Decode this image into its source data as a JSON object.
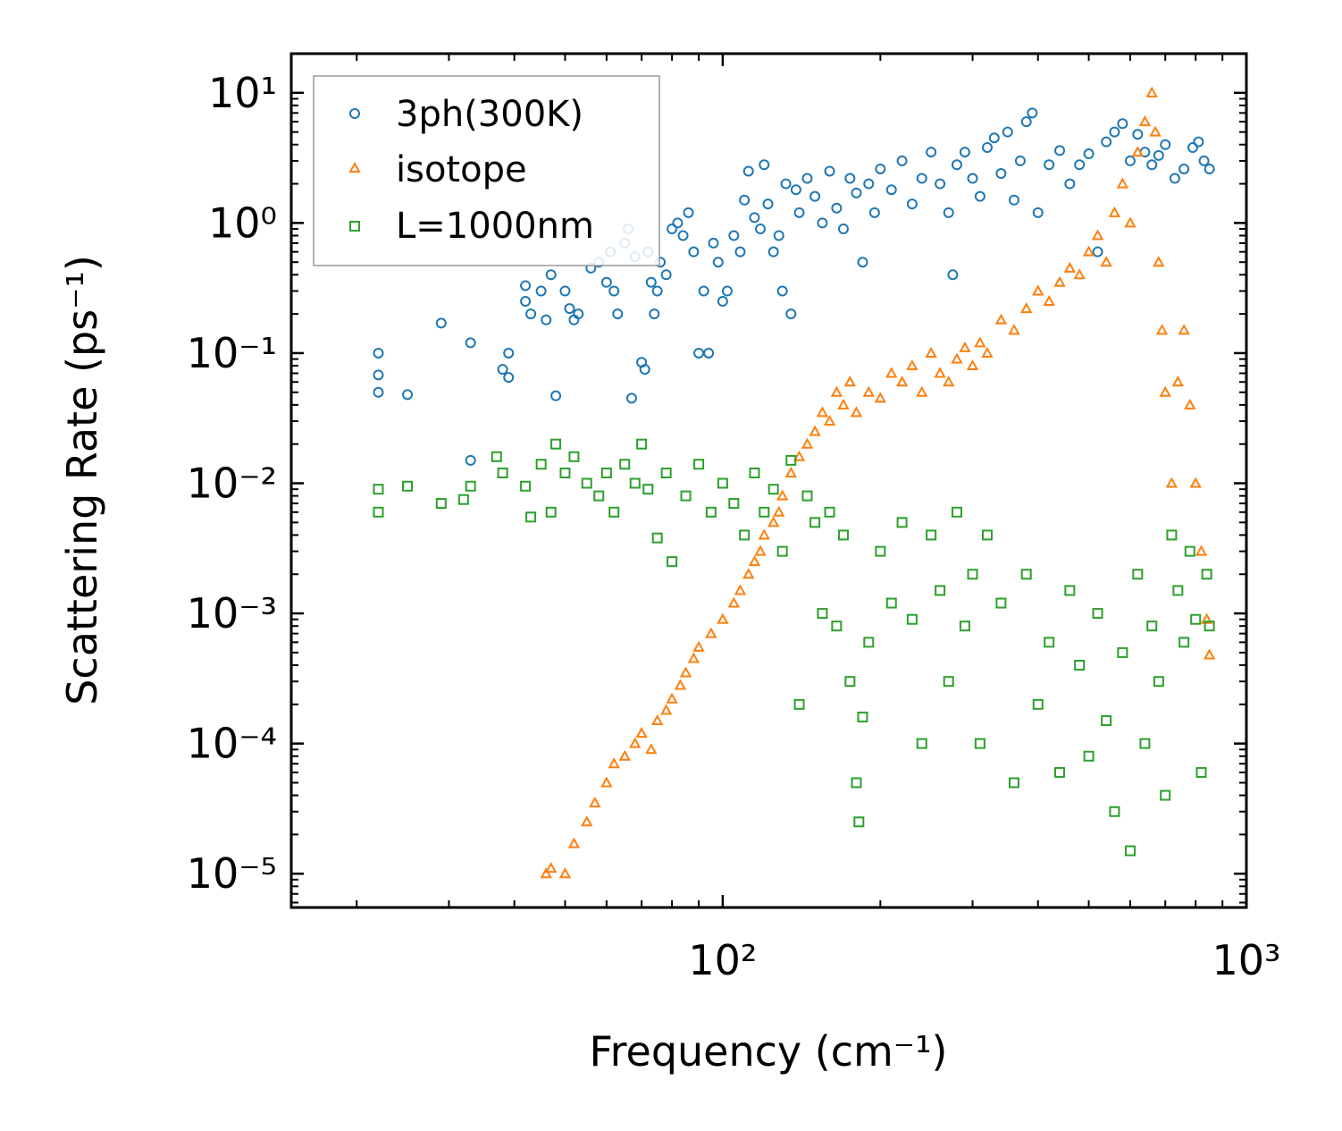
{
  "chart_data": {
    "type": "scatter",
    "title": "",
    "xlabel": "Frequency (cm⁻¹)",
    "ylabel": "Scattering Rate (ps⁻¹)",
    "xscale": "log",
    "yscale": "log",
    "xlim": [
      15,
      1000
    ],
    "ylim": [
      5.5e-06,
      20
    ],
    "x_ticks": [
      {
        "value": 100,
        "label": "10²"
      },
      {
        "value": 1000,
        "label": "10³"
      }
    ],
    "y_ticks": [
      {
        "value": 10,
        "label": "10¹"
      },
      {
        "value": 1,
        "label": "10⁰"
      },
      {
        "value": 0.1,
        "label": "10⁻¹"
      },
      {
        "value": 0.01,
        "label": "10⁻²"
      },
      {
        "value": 0.001,
        "label": "10⁻³"
      },
      {
        "value": 0.0001,
        "label": "10⁻⁴"
      },
      {
        "value": 1e-05,
        "label": "10⁻⁵"
      }
    ],
    "legend_position": "top-left",
    "series": [
      {
        "name": "3ph(300K)",
        "marker": "circle",
        "color": "#1f77b4",
        "points": [
          [
            22,
            0.1
          ],
          [
            22,
            0.068
          ],
          [
            22,
            0.05
          ],
          [
            25,
            0.048
          ],
          [
            29,
            0.17
          ],
          [
            33,
            0.12
          ],
          [
            33,
            0.015
          ],
          [
            38,
            0.075
          ],
          [
            39,
            0.065
          ],
          [
            39,
            0.1
          ],
          [
            42,
            0.33
          ],
          [
            42,
            0.25
          ],
          [
            43,
            0.2
          ],
          [
            45,
            0.3
          ],
          [
            46,
            0.18
          ],
          [
            47,
            0.4
          ],
          [
            48,
            0.047
          ],
          [
            50,
            0.3
          ],
          [
            51,
            0.22
          ],
          [
            52,
            0.18
          ],
          [
            53,
            0.2
          ],
          [
            56,
            0.45
          ],
          [
            58,
            0.5
          ],
          [
            60,
            0.35
          ],
          [
            61,
            0.6
          ],
          [
            62,
            0.3
          ],
          [
            63,
            0.2
          ],
          [
            65,
            0.7
          ],
          [
            66,
            0.9
          ],
          [
            67,
            0.045
          ],
          [
            68,
            0.55
          ],
          [
            70,
            0.085
          ],
          [
            71,
            0.075
          ],
          [
            72,
            0.6
          ],
          [
            73,
            0.35
          ],
          [
            74,
            0.2
          ],
          [
            75,
            0.3
          ],
          [
            76,
            0.5
          ],
          [
            78,
            0.4
          ],
          [
            80,
            0.9
          ],
          [
            82,
            1.0
          ],
          [
            84,
            0.8
          ],
          [
            86,
            1.2
          ],
          [
            88,
            0.6
          ],
          [
            90,
            0.1
          ],
          [
            92,
            0.3
          ],
          [
            94,
            0.1
          ],
          [
            96,
            0.7
          ],
          [
            98,
            0.5
          ],
          [
            100,
            0.25
          ],
          [
            102,
            0.3
          ],
          [
            105,
            0.8
          ],
          [
            108,
            0.6
          ],
          [
            110,
            1.5
          ],
          [
            112,
            2.5
          ],
          [
            115,
            1.1
          ],
          [
            118,
            0.9
          ],
          [
            120,
            2.8
          ],
          [
            122,
            1.4
          ],
          [
            125,
            0.6
          ],
          [
            128,
            0.8
          ],
          [
            130,
            0.3
          ],
          [
            132,
            2.0
          ],
          [
            135,
            0.2
          ],
          [
            138,
            1.8
          ],
          [
            140,
            1.2
          ],
          [
            145,
            2.2
          ],
          [
            150,
            1.6
          ],
          [
            155,
            1.0
          ],
          [
            160,
            2.5
          ],
          [
            165,
            1.3
          ],
          [
            170,
            0.9
          ],
          [
            175,
            2.2
          ],
          [
            180,
            1.7
          ],
          [
            185,
            0.5
          ],
          [
            190,
            2.0
          ],
          [
            195,
            1.2
          ],
          [
            200,
            2.6
          ],
          [
            210,
            1.8
          ],
          [
            220,
            3.0
          ],
          [
            230,
            1.4
          ],
          [
            240,
            2.2
          ],
          [
            250,
            3.5
          ],
          [
            260,
            2.0
          ],
          [
            270,
            1.2
          ],
          [
            275,
            0.4
          ],
          [
            280,
            2.8
          ],
          [
            290,
            3.5
          ],
          [
            300,
            2.2
          ],
          [
            310,
            1.6
          ],
          [
            320,
            3.8
          ],
          [
            330,
            4.5
          ],
          [
            340,
            2.4
          ],
          [
            350,
            5.0
          ],
          [
            360,
            1.5
          ],
          [
            370,
            3.0
          ],
          [
            380,
            6.0
          ],
          [
            390,
            7.0
          ],
          [
            400,
            1.2
          ],
          [
            420,
            2.8
          ],
          [
            440,
            3.6
          ],
          [
            460,
            2.0
          ],
          [
            480,
            2.8
          ],
          [
            500,
            3.4
          ],
          [
            520,
            0.6
          ],
          [
            540,
            4.2
          ],
          [
            560,
            5.0
          ],
          [
            580,
            5.8
          ],
          [
            600,
            3.0
          ],
          [
            620,
            4.8
          ],
          [
            640,
            3.5
          ],
          [
            660,
            2.8
          ],
          [
            680,
            3.3
          ],
          [
            700,
            4.0
          ],
          [
            730,
            2.2
          ],
          [
            760,
            2.6
          ],
          [
            790,
            3.8
          ],
          [
            810,
            4.2
          ],
          [
            830,
            3.0
          ],
          [
            850,
            2.6
          ]
        ]
      },
      {
        "name": "isotope",
        "marker": "triangle",
        "color": "#ff7f0e",
        "points": [
          [
            46,
            1e-05
          ],
          [
            47,
            1.1e-05
          ],
          [
            50,
            1e-05
          ],
          [
            52,
            1.7e-05
          ],
          [
            55,
            2.5e-05
          ],
          [
            57,
            3.5e-05
          ],
          [
            60,
            5e-05
          ],
          [
            62,
            7e-05
          ],
          [
            65,
            8e-05
          ],
          [
            68,
            0.0001
          ],
          [
            70,
            0.00012
          ],
          [
            73,
            9e-05
          ],
          [
            75,
            0.00015
          ],
          [
            78,
            0.00018
          ],
          [
            80,
            0.00022
          ],
          [
            83,
            0.00028
          ],
          [
            85,
            0.00035
          ],
          [
            88,
            0.00045
          ],
          [
            90,
            0.00055
          ],
          [
            95,
            0.0007
          ],
          [
            100,
            0.0009
          ],
          [
            105,
            0.0012
          ],
          [
            108,
            0.0015
          ],
          [
            112,
            0.002
          ],
          [
            115,
            0.0025
          ],
          [
            118,
            0.003
          ],
          [
            120,
            0.004
          ],
          [
            125,
            0.005
          ],
          [
            128,
            0.006
          ],
          [
            130,
            0.008
          ],
          [
            135,
            0.012
          ],
          [
            140,
            0.016
          ],
          [
            145,
            0.02
          ],
          [
            150,
            0.025
          ],
          [
            155,
            0.035
          ],
          [
            160,
            0.03
          ],
          [
            165,
            0.05
          ],
          [
            170,
            0.04
          ],
          [
            175,
            0.06
          ],
          [
            180,
            0.035
          ],
          [
            190,
            0.05
          ],
          [
            200,
            0.045
          ],
          [
            210,
            0.07
          ],
          [
            220,
            0.06
          ],
          [
            230,
            0.08
          ],
          [
            240,
            0.05
          ],
          [
            250,
            0.1
          ],
          [
            260,
            0.07
          ],
          [
            270,
            0.06
          ],
          [
            280,
            0.09
          ],
          [
            290,
            0.11
          ],
          [
            300,
            0.08
          ],
          [
            310,
            0.12
          ],
          [
            320,
            0.1
          ],
          [
            340,
            0.18
          ],
          [
            360,
            0.15
          ],
          [
            380,
            0.22
          ],
          [
            400,
            0.3
          ],
          [
            420,
            0.25
          ],
          [
            440,
            0.35
          ],
          [
            460,
            0.45
          ],
          [
            480,
            0.4
          ],
          [
            500,
            0.6
          ],
          [
            520,
            0.8
          ],
          [
            540,
            0.5
          ],
          [
            560,
            1.2
          ],
          [
            580,
            2.0
          ],
          [
            600,
            1.0
          ],
          [
            620,
            3.5
          ],
          [
            640,
            6.0
          ],
          [
            660,
            10.0
          ],
          [
            670,
            5.0
          ],
          [
            680,
            0.5
          ],
          [
            690,
            0.15
          ],
          [
            700,
            0.05
          ],
          [
            720,
            0.01
          ],
          [
            740,
            0.06
          ],
          [
            760,
            0.15
          ],
          [
            780,
            0.04
          ],
          [
            800,
            0.01
          ],
          [
            820,
            0.003
          ],
          [
            840,
            0.0009
          ],
          [
            850,
            0.00048
          ]
        ]
      },
      {
        "name": "L=1000nm",
        "marker": "square",
        "color": "#2ca02c",
        "points": [
          [
            22,
            0.009
          ],
          [
            22,
            0.006
          ],
          [
            25,
            0.0095
          ],
          [
            29,
            0.007
          ],
          [
            32,
            0.0075
          ],
          [
            33,
            0.0095
          ],
          [
            37,
            0.016
          ],
          [
            38,
            0.012
          ],
          [
            42,
            0.0095
          ],
          [
            43,
            0.0055
          ],
          [
            45,
            0.014
          ],
          [
            47,
            0.006
          ],
          [
            48,
            0.02
          ],
          [
            50,
            0.012
          ],
          [
            52,
            0.016
          ],
          [
            55,
            0.01
          ],
          [
            58,
            0.008
          ],
          [
            60,
            0.012
          ],
          [
            62,
            0.006
          ],
          [
            65,
            0.014
          ],
          [
            68,
            0.01
          ],
          [
            70,
            0.02
          ],
          [
            72,
            0.009
          ],
          [
            75,
            0.0038
          ],
          [
            78,
            0.012
          ],
          [
            80,
            0.0025
          ],
          [
            85,
            0.008
          ],
          [
            90,
            0.014
          ],
          [
            95,
            0.006
          ],
          [
            100,
            0.01
          ],
          [
            105,
            0.007
          ],
          [
            110,
            0.004
          ],
          [
            115,
            0.012
          ],
          [
            120,
            0.006
          ],
          [
            125,
            0.009
          ],
          [
            130,
            0.003
          ],
          [
            135,
            0.015
          ],
          [
            140,
            0.0002
          ],
          [
            145,
            0.008
          ],
          [
            150,
            0.005
          ],
          [
            155,
            0.001
          ],
          [
            160,
            0.006
          ],
          [
            165,
            0.0008
          ],
          [
            170,
            0.004
          ],
          [
            175,
            0.0003
          ],
          [
            180,
            5e-05
          ],
          [
            182,
            2.5e-05
          ],
          [
            185,
            0.00016
          ],
          [
            190,
            0.0006
          ],
          [
            200,
            0.003
          ],
          [
            210,
            0.0012
          ],
          [
            220,
            0.005
          ],
          [
            230,
            0.0009
          ],
          [
            240,
            0.0001
          ],
          [
            250,
            0.004
          ],
          [
            260,
            0.0015
          ],
          [
            270,
            0.0003
          ],
          [
            280,
            0.006
          ],
          [
            290,
            0.0008
          ],
          [
            300,
            0.002
          ],
          [
            310,
            0.0001
          ],
          [
            320,
            0.004
          ],
          [
            340,
            0.0012
          ],
          [
            360,
            5e-05
          ],
          [
            380,
            0.002
          ],
          [
            400,
            0.0002
          ],
          [
            420,
            0.0006
          ],
          [
            440,
            6e-05
          ],
          [
            460,
            0.0015
          ],
          [
            480,
            0.0004
          ],
          [
            500,
            8e-05
          ],
          [
            520,
            0.001
          ],
          [
            540,
            0.00015
          ],
          [
            560,
            3e-05
          ],
          [
            580,
            0.0005
          ],
          [
            600,
            1.5e-05
          ],
          [
            620,
            0.002
          ],
          [
            640,
            0.0001
          ],
          [
            660,
            0.0008
          ],
          [
            680,
            0.0003
          ],
          [
            700,
            4e-05
          ],
          [
            720,
            0.004
          ],
          [
            740,
            0.0015
          ],
          [
            760,
            0.0006
          ],
          [
            780,
            0.003
          ],
          [
            800,
            0.0009
          ],
          [
            820,
            6e-05
          ],
          [
            840,
            0.002
          ],
          [
            850,
            0.0008
          ]
        ]
      }
    ]
  }
}
